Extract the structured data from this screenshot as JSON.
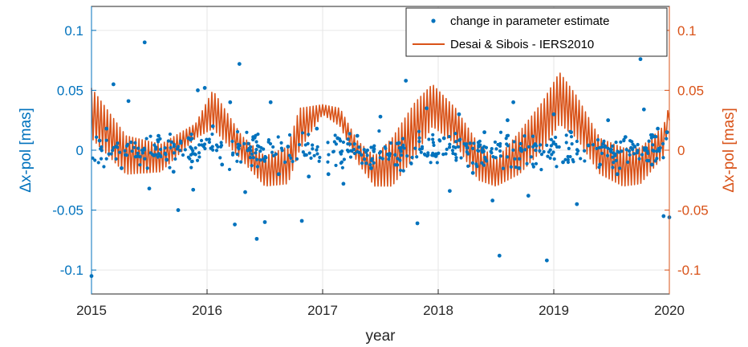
{
  "chart_data": {
    "type": "scatter+line",
    "xlabel": "year",
    "ylabel_left": "Δx-pol [mas]",
    "ylabel_right": "Δx-pol [mas]",
    "xlim": [
      2015,
      2020
    ],
    "ylim_left": [
      -0.12,
      0.12
    ],
    "ylim_right": [
      -0.12,
      0.12
    ],
    "x_ticks": [
      "2015",
      "2016",
      "2017",
      "2018",
      "2019",
      "2020"
    ],
    "y_ticks_left": [
      "-0.1",
      "-0.05",
      "0",
      "0.05",
      "0.1"
    ],
    "y_ticks_right": [
      "-0.1",
      "-0.05",
      "0",
      "0.05",
      "0.1"
    ],
    "grid": true,
    "legend_position": "top-right",
    "colors": {
      "scatter": "#0072BD",
      "line": "#D95319",
      "grid": "#E6E6E6",
      "axis": "#262626"
    },
    "series": [
      {
        "name": "change in parameter estimate",
        "kind": "scatter",
        "axis": "left",
        "points": [
          [
            2015.0,
            -0.105
          ],
          [
            2015.07,
            0.008
          ],
          [
            2015.13,
            0.018
          ],
          [
            2015.19,
            0.055
          ],
          [
            2015.26,
            -0.015
          ],
          [
            2015.32,
            0.041
          ],
          [
            2015.4,
            -0.005
          ],
          [
            2015.46,
            0.09
          ],
          [
            2015.5,
            -0.032
          ],
          [
            2015.58,
            0.012
          ],
          [
            2015.65,
            -0.008
          ],
          [
            2015.71,
            -0.018
          ],
          [
            2015.75,
            -0.05
          ],
          [
            2015.84,
            0.01
          ],
          [
            2015.88,
            -0.033
          ],
          [
            2015.92,
            0.05
          ],
          [
            2015.98,
            0.052
          ],
          [
            2016.05,
            0.02
          ],
          [
            2016.13,
            -0.012
          ],
          [
            2016.2,
            0.04
          ],
          [
            2016.24,
            -0.062
          ],
          [
            2016.28,
            0.072
          ],
          [
            2016.33,
            -0.035
          ],
          [
            2016.4,
            0.011
          ],
          [
            2016.43,
            -0.074
          ],
          [
            2016.5,
            -0.06
          ],
          [
            2016.55,
            0.04
          ],
          [
            2016.62,
            -0.02
          ],
          [
            2016.7,
            0.003
          ],
          [
            2016.82,
            -0.059
          ],
          [
            2016.88,
            -0.022
          ],
          [
            2016.95,
            0.018
          ],
          [
            2017.05,
            -0.02
          ],
          [
            2017.13,
            0.01
          ],
          [
            2017.18,
            -0.028
          ],
          [
            2017.3,
            0.012
          ],
          [
            2017.42,
            -0.015
          ],
          [
            2017.5,
            0.028
          ],
          [
            2017.58,
            -0.003
          ],
          [
            2017.66,
            0.006
          ],
          [
            2017.72,
            0.058
          ],
          [
            2017.82,
            -0.061
          ],
          [
            2017.9,
            0.035
          ],
          [
            2017.98,
            -0.005
          ],
          [
            2018.05,
            0.01
          ],
          [
            2018.1,
            -0.034
          ],
          [
            2018.18,
            0.03
          ],
          [
            2018.25,
            0.002
          ],
          [
            2018.3,
            -0.019
          ],
          [
            2018.4,
            0.015
          ],
          [
            2018.47,
            -0.042
          ],
          [
            2018.53,
            -0.088
          ],
          [
            2018.6,
            0.025
          ],
          [
            2018.65,
            0.04
          ],
          [
            2018.7,
            -0.015
          ],
          [
            2018.78,
            -0.038
          ],
          [
            2018.84,
            0.005
          ],
          [
            2018.94,
            -0.092
          ],
          [
            2019.0,
            0.03
          ],
          [
            2019.08,
            -0.01
          ],
          [
            2019.15,
            0.015
          ],
          [
            2019.2,
            -0.045
          ],
          [
            2019.3,
            0.004
          ],
          [
            2019.4,
            -0.012
          ],
          [
            2019.47,
            0.025
          ],
          [
            2019.55,
            -0.02
          ],
          [
            2019.62,
            0.011
          ],
          [
            2019.7,
            0.003
          ],
          [
            2019.75,
            0.076
          ],
          [
            2019.78,
            0.034
          ],
          [
            2019.85,
            -0.012
          ],
          [
            2019.9,
            0.018
          ],
          [
            2019.95,
            -0.055
          ],
          [
            2019.98,
            0.015
          ],
          [
            2020.0,
            -0.056
          ]
        ]
      },
      {
        "name": "Desai & Sibois - IERS2010",
        "kind": "line",
        "axis": "right",
        "envelope": {
          "x": [
            2015.0,
            2015.3,
            2015.6,
            2015.9,
            2016.05,
            2016.3,
            2016.5,
            2016.7,
            2016.8,
            2017.0,
            2017.15,
            2017.3,
            2017.45,
            2017.6,
            2017.8,
            2017.95,
            2018.15,
            2018.35,
            2018.5,
            2018.7,
            2018.9,
            2019.05,
            2019.2,
            2019.4,
            2019.6,
            2019.75,
            2019.95,
            2020.0
          ],
          "upper": [
            0.052,
            0.012,
            0.005,
            0.022,
            0.05,
            0.012,
            -0.005,
            0.003,
            0.035,
            0.038,
            0.035,
            0.008,
            -0.005,
            0.01,
            0.04,
            0.055,
            0.035,
            0.005,
            -0.008,
            0.015,
            0.04,
            0.065,
            0.045,
            0.01,
            0.002,
            0.002,
            0.02,
            0.038
          ],
          "lower": [
            0.01,
            -0.02,
            -0.018,
            0.01,
            0.018,
            -0.008,
            -0.03,
            -0.028,
            0.0,
            0.03,
            0.02,
            -0.01,
            -0.03,
            -0.03,
            -0.005,
            0.02,
            0.005,
            -0.025,
            -0.03,
            -0.02,
            0.0,
            0.022,
            0.01,
            -0.02,
            -0.03,
            -0.028,
            -0.005,
            0.025
          ]
        }
      }
    ]
  }
}
